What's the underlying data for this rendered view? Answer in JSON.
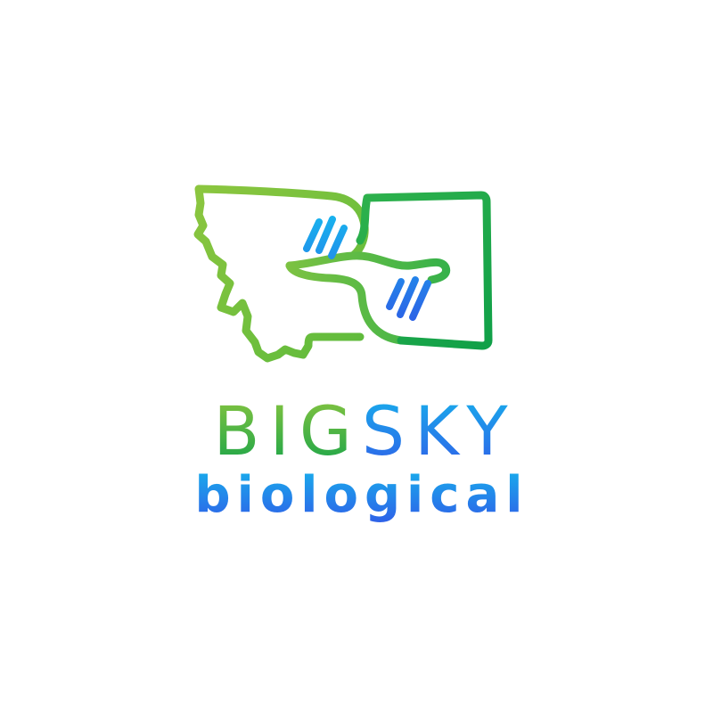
{
  "brand": {
    "word_big": "BIG",
    "word_sky": "SKY",
    "word_biological": "biological",
    "colors": {
      "green_light": "#8cc63f",
      "green_dark": "#14a34a",
      "blue_light": "#17b1ec",
      "blue_dark": "#2f5fe8"
    }
  },
  "emblem": {
    "icon": "montana-dna-icon"
  }
}
